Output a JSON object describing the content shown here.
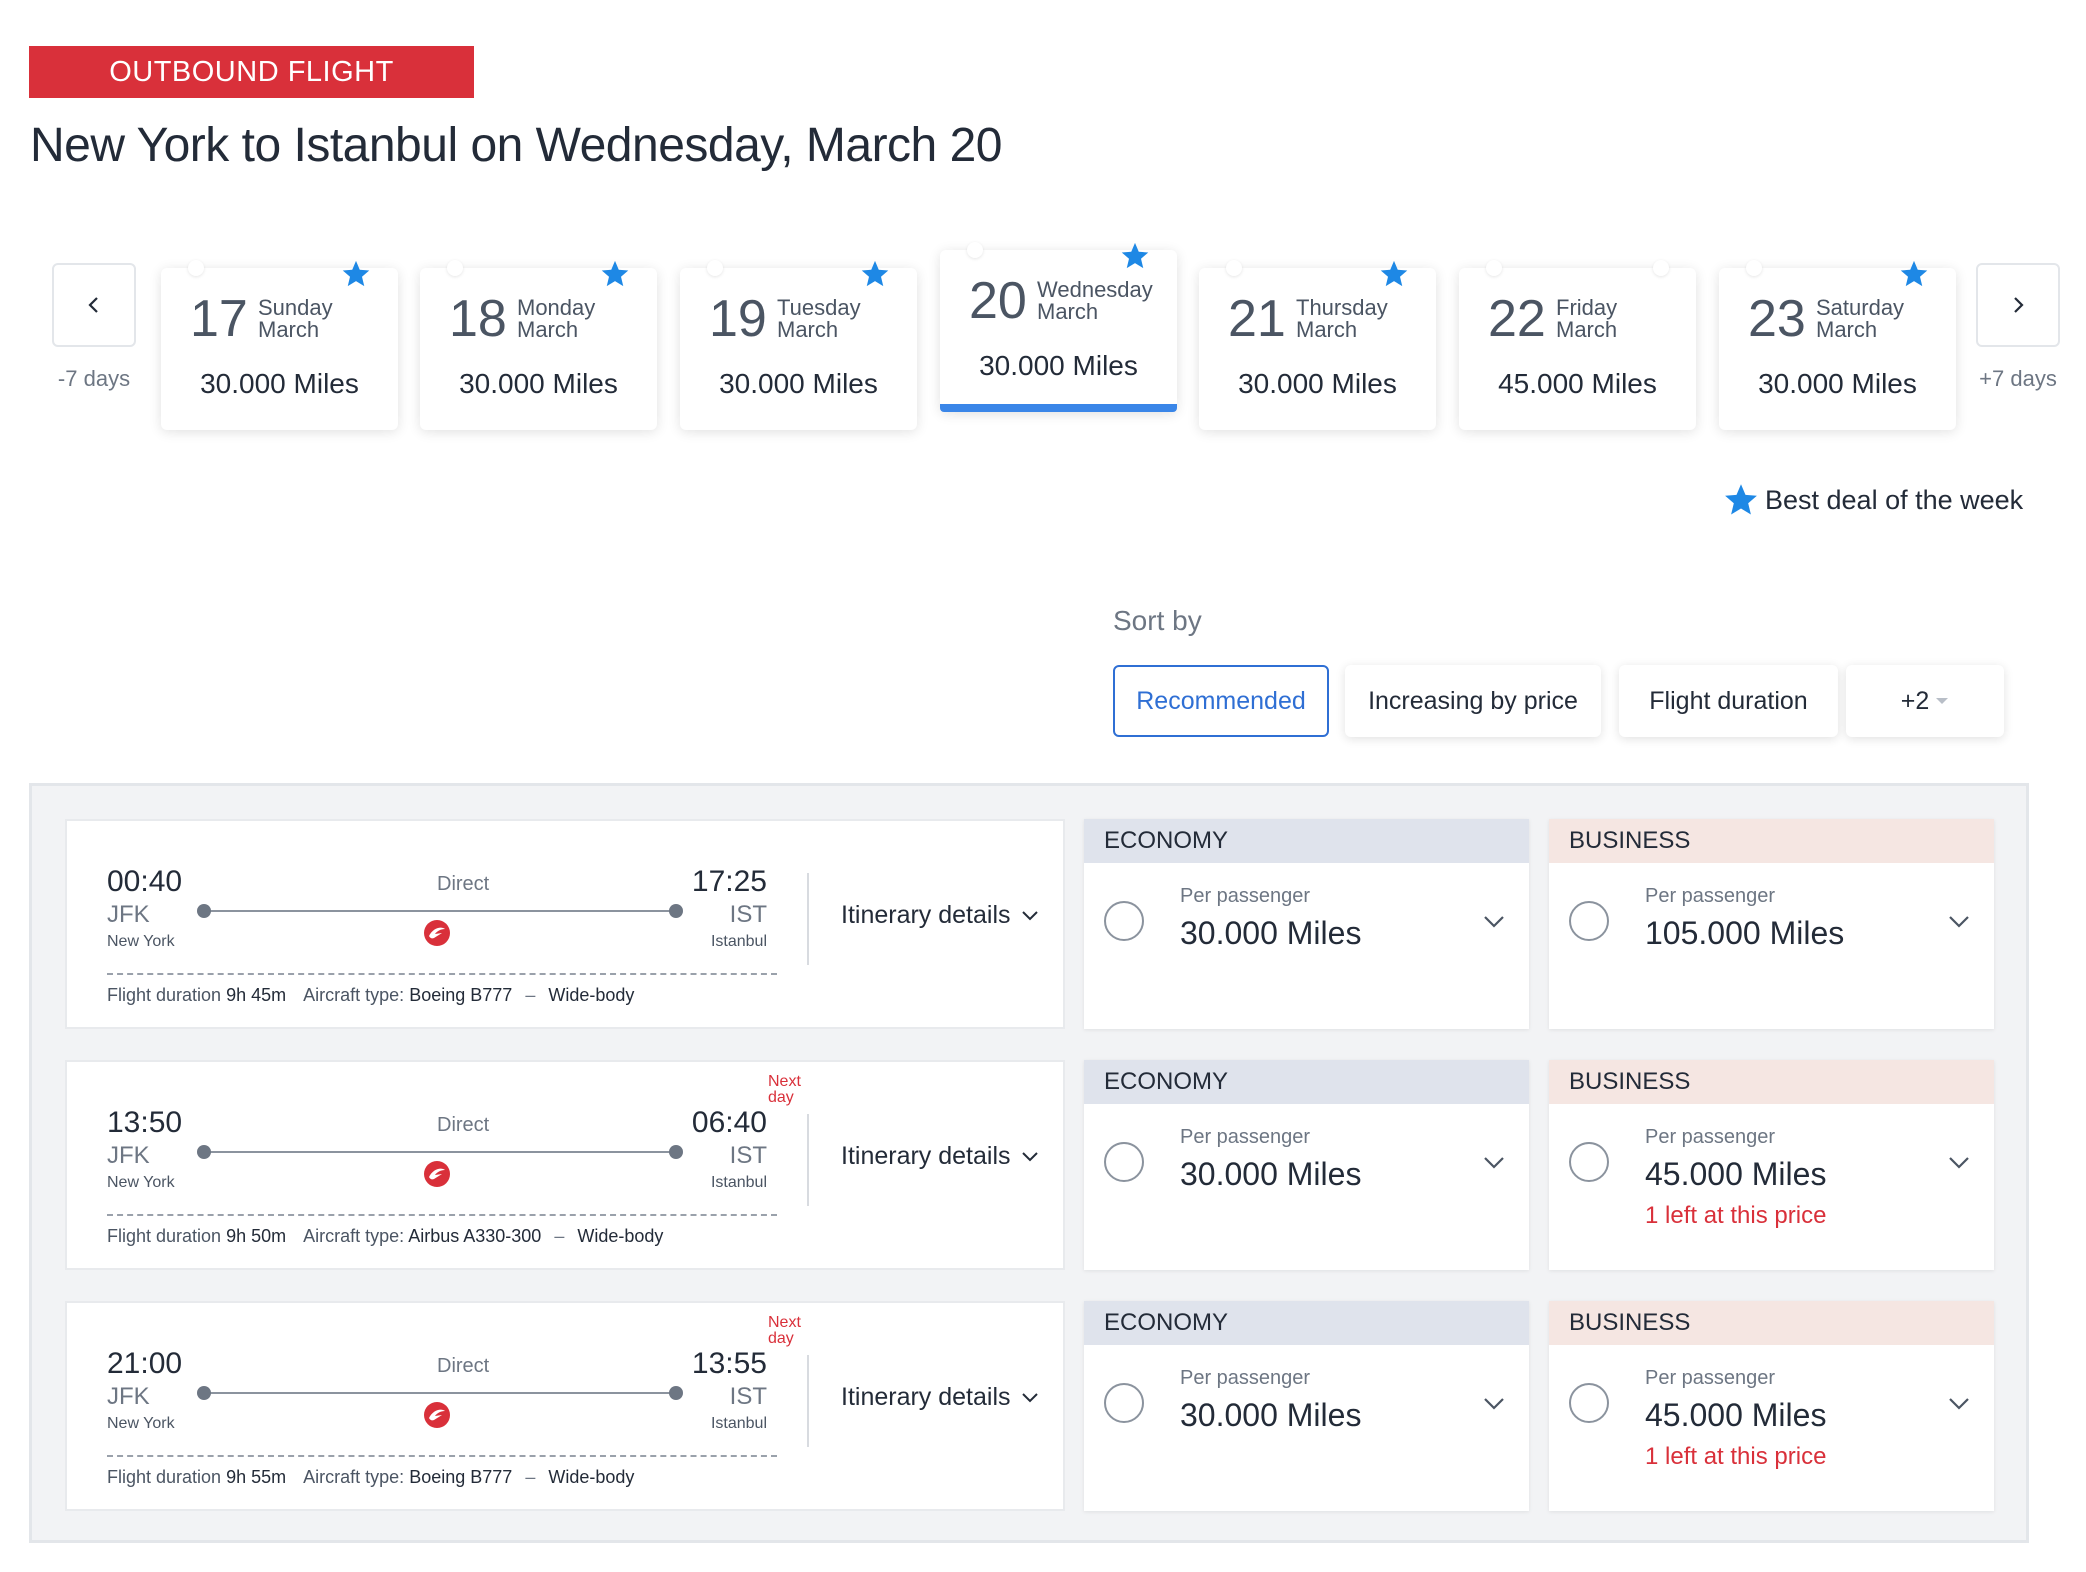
{
  "header": {
    "badge": "OUTBOUND FLIGHT",
    "title": "New York to Istanbul on Wednesday, March 20"
  },
  "date_nav": {
    "prev_label": "-7 days",
    "next_label": "+7 days",
    "days": [
      {
        "num": "17",
        "weekday": "Sunday",
        "month": "March",
        "miles": "30.000 Miles",
        "best": true
      },
      {
        "num": "18",
        "weekday": "Monday",
        "month": "March",
        "miles": "30.000 Miles",
        "best": true
      },
      {
        "num": "19",
        "weekday": "Tuesday",
        "month": "March",
        "miles": "30.000 Miles",
        "best": true
      },
      {
        "num": "20",
        "weekday": "Wednesday",
        "month": "March",
        "miles": "30.000 Miles",
        "best": true,
        "selected": true
      },
      {
        "num": "21",
        "weekday": "Thursday",
        "month": "March",
        "miles": "30.000 Miles",
        "best": true
      },
      {
        "num": "22",
        "weekday": "Friday",
        "month": "March",
        "miles": "45.000 Miles",
        "best": false
      },
      {
        "num": "23",
        "weekday": "Saturday",
        "month": "March",
        "miles": "30.000 Miles",
        "best": true
      }
    ]
  },
  "legend": {
    "label": "Best deal of the week"
  },
  "sort": {
    "label": "Sort by",
    "options": [
      "Recommended",
      "Increasing by price",
      "Flight duration",
      "+2"
    ],
    "active": "Recommended"
  },
  "colors": {
    "accent": "#d9303a",
    "selected": "#3a86e8",
    "star": "#1e88e5",
    "economy_header": "#dfe3ec",
    "business_header": "#f5e6e2"
  },
  "flights": [
    {
      "dep_time": "00:40",
      "dep_code": "JFK",
      "dep_city": "New York",
      "arr_time": "17:25",
      "arr_code": "IST",
      "arr_city": "Istanbul",
      "stops": "Direct",
      "next_day": false,
      "next_day_line1": "",
      "next_day_line2": "",
      "itinerary_label": "Itinerary details",
      "duration_label": "Flight duration",
      "duration": "9h 45m",
      "aircraft_label": "Aircraft type:",
      "aircraft": "Boeing B777",
      "body": "Wide-body",
      "economy": {
        "header": "ECONOMY",
        "per": "Per passenger",
        "price": "30.000 Miles",
        "note": ""
      },
      "business": {
        "header": "BUSINESS",
        "per": "Per passenger",
        "price": "105.000 Miles",
        "note": ""
      }
    },
    {
      "dep_time": "13:50",
      "dep_code": "JFK",
      "dep_city": "New York",
      "arr_time": "06:40",
      "arr_code": "IST",
      "arr_city": "Istanbul",
      "stops": "Direct",
      "next_day": true,
      "next_day_line1": "Next",
      "next_day_line2": "day",
      "itinerary_label": "Itinerary details",
      "duration_label": "Flight duration",
      "duration": "9h 50m",
      "aircraft_label": "Aircraft type:",
      "aircraft": "Airbus A330-300",
      "body": "Wide-body",
      "economy": {
        "header": "ECONOMY",
        "per": "Per passenger",
        "price": "30.000 Miles",
        "note": ""
      },
      "business": {
        "header": "BUSINESS",
        "per": "Per passenger",
        "price": "45.000 Miles",
        "note": "1 left at this price"
      }
    },
    {
      "dep_time": "21:00",
      "dep_code": "JFK",
      "dep_city": "New York",
      "arr_time": "13:55",
      "arr_code": "IST",
      "arr_city": "Istanbul",
      "stops": "Direct",
      "next_day": true,
      "next_day_line1": "Next",
      "next_day_line2": "day",
      "itinerary_label": "Itinerary details",
      "duration_label": "Flight duration",
      "duration": "9h 55m",
      "aircraft_label": "Aircraft type:",
      "aircraft": "Boeing B777",
      "body": "Wide-body",
      "economy": {
        "header": "ECONOMY",
        "per": "Per passenger",
        "price": "30.000 Miles",
        "note": ""
      },
      "business": {
        "header": "BUSINESS",
        "per": "Per passenger",
        "price": "45.000 Miles",
        "note": "1 left at this price"
      }
    }
  ]
}
